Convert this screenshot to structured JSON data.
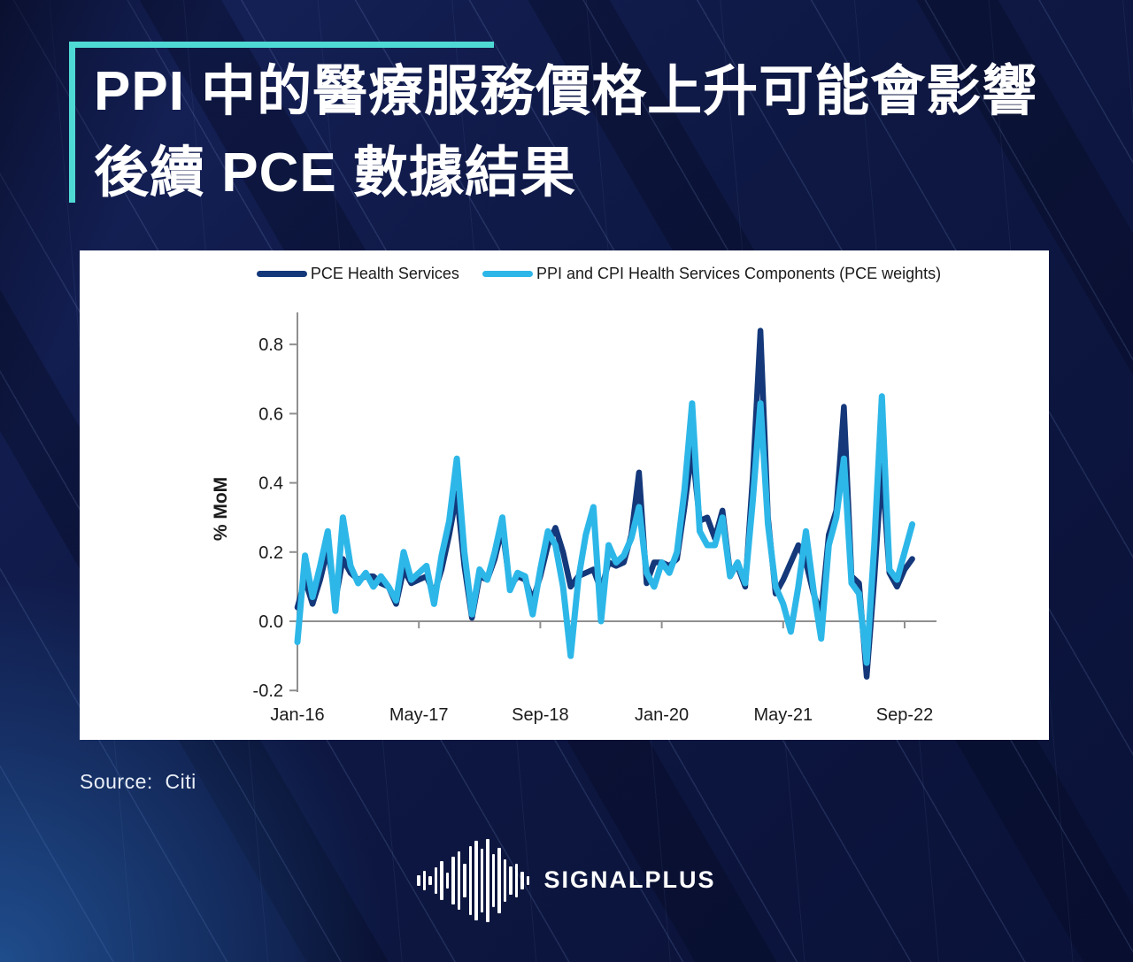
{
  "title": {
    "line1": "PPI 中的醫療服務價格上升可能會影響",
    "line2": "後續 PCE 數據結果"
  },
  "source": {
    "text": "Source:  Citi"
  },
  "logo": {
    "text": "SIGNALPLUS",
    "waveform_bar_heights": [
      12,
      22,
      10,
      30,
      44,
      18,
      54,
      66,
      38,
      78,
      90,
      72,
      94,
      60,
      74,
      48,
      32,
      38,
      20,
      10
    ]
  },
  "colors": {
    "background_navy": "#0f1a47",
    "accent_teal": "#4fd9d4",
    "panel_white": "#ffffff",
    "pce_line": "#14387a",
    "ppi_cpi_line": "#2db7e8",
    "axis_gray": "#8f8f8f",
    "tick_label": "#1b1b1b",
    "source_text": "#e9eef7"
  },
  "chart_data": {
    "type": "line",
    "title": "",
    "ylabel": "% MoM",
    "xlabel": "",
    "ylim": [
      -0.2,
      0.9
    ],
    "grid": false,
    "legend_position": "top",
    "y_ticks": [
      {
        "value": 0.8,
        "label": "0.8"
      },
      {
        "value": 0.6,
        "label": "0.6"
      },
      {
        "value": 0.4,
        "label": "0.4"
      },
      {
        "value": 0.2,
        "label": "0.2"
      },
      {
        "value": 0.0,
        "label": "0.0"
      },
      {
        "value": -0.2,
        "label": "-0.2"
      }
    ],
    "x_ticks": [
      {
        "month": 0,
        "label": "Jan-16"
      },
      {
        "month": 16,
        "label": "May-17"
      },
      {
        "month": 32,
        "label": "Sep-18"
      },
      {
        "month": 48,
        "label": "Jan-20"
      },
      {
        "month": 64,
        "label": "May-21"
      },
      {
        "month": 80,
        "label": "Sep-22"
      }
    ],
    "categories": [
      "Jan-16",
      "Feb-16",
      "Mar-16",
      "Apr-16",
      "May-16",
      "Jun-16",
      "Jul-16",
      "Aug-16",
      "Sep-16",
      "Oct-16",
      "Nov-16",
      "Dec-16",
      "Jan-17",
      "Feb-17",
      "Mar-17",
      "Apr-17",
      "May-17",
      "Jun-17",
      "Jul-17",
      "Aug-17",
      "Sep-17",
      "Oct-17",
      "Nov-17",
      "Dec-17",
      "Jan-18",
      "Feb-18",
      "Mar-18",
      "Apr-18",
      "May-18",
      "Jun-18",
      "Jul-18",
      "Aug-18",
      "Sep-18",
      "Oct-18",
      "Nov-18",
      "Dec-18",
      "Jan-19",
      "Feb-19",
      "Mar-19",
      "Apr-19",
      "May-19",
      "Jun-19",
      "Jul-19",
      "Aug-19",
      "Sep-19",
      "Oct-19",
      "Nov-19",
      "Dec-19",
      "Jan-20",
      "Feb-20",
      "Mar-20",
      "Apr-20",
      "May-20",
      "Jun-20",
      "Jul-20",
      "Aug-20",
      "Sep-20",
      "Oct-20",
      "Nov-20",
      "Dec-20",
      "Jan-21",
      "Feb-21",
      "Mar-21",
      "Apr-21",
      "May-21",
      "Jun-21",
      "Jul-21",
      "Aug-21",
      "Sep-21",
      "Oct-21",
      "Nov-21",
      "Dec-21",
      "Jan-22",
      "Feb-22",
      "Mar-22",
      "Apr-22",
      "May-22",
      "Jun-22",
      "Jul-22",
      "Aug-22",
      "Sep-22",
      "Oct-22"
    ],
    "series": [
      {
        "id": "pce",
        "name": "PCE Health Services",
        "color": "#14387a",
        "values": [
          0.04,
          0.12,
          0.05,
          0.12,
          0.21,
          0.06,
          0.18,
          0.14,
          0.12,
          0.13,
          0.13,
          0.11,
          0.1,
          0.05,
          0.15,
          0.11,
          0.12,
          0.13,
          0.08,
          0.15,
          0.25,
          0.37,
          0.16,
          0.01,
          0.13,
          0.12,
          0.18,
          0.27,
          0.1,
          0.13,
          0.12,
          0.06,
          0.13,
          0.22,
          0.27,
          0.2,
          0.1,
          0.13,
          0.14,
          0.15,
          0.09,
          0.17,
          0.16,
          0.17,
          0.25,
          0.43,
          0.11,
          0.17,
          0.17,
          0.16,
          0.18,
          0.33,
          0.5,
          0.29,
          0.3,
          0.24,
          0.32,
          0.14,
          0.16,
          0.1,
          0.42,
          0.84,
          0.3,
          0.08,
          0.12,
          0.17,
          0.22,
          0.17,
          0.08,
          0.02,
          0.25,
          0.32,
          0.62,
          0.13,
          0.11,
          -0.16,
          0.12,
          0.45,
          0.14,
          0.1,
          0.15,
          0.18
        ]
      },
      {
        "id": "ppi-cpi",
        "name": "PPI and CPI Health Services Components (PCE weights)",
        "color": "#2db7e8",
        "values": [
          -0.06,
          0.19,
          0.07,
          0.16,
          0.26,
          0.03,
          0.3,
          0.16,
          0.11,
          0.14,
          0.1,
          0.13,
          0.1,
          0.06,
          0.2,
          0.12,
          0.14,
          0.16,
          0.05,
          0.19,
          0.29,
          0.47,
          0.2,
          0.02,
          0.15,
          0.12,
          0.2,
          0.3,
          0.09,
          0.14,
          0.13,
          0.02,
          0.15,
          0.26,
          0.22,
          0.1,
          -0.1,
          0.12,
          0.25,
          0.33,
          0.0,
          0.22,
          0.17,
          0.19,
          0.24,
          0.33,
          0.14,
          0.1,
          0.17,
          0.14,
          0.2,
          0.38,
          0.63,
          0.26,
          0.22,
          0.22,
          0.3,
          0.13,
          0.17,
          0.11,
          0.35,
          0.63,
          0.28,
          0.1,
          0.05,
          -0.03,
          0.1,
          0.26,
          0.09,
          -0.05,
          0.22,
          0.3,
          0.47,
          0.11,
          0.08,
          -0.12,
          0.22,
          0.65,
          0.15,
          0.12,
          0.2,
          0.28
        ]
      }
    ]
  }
}
